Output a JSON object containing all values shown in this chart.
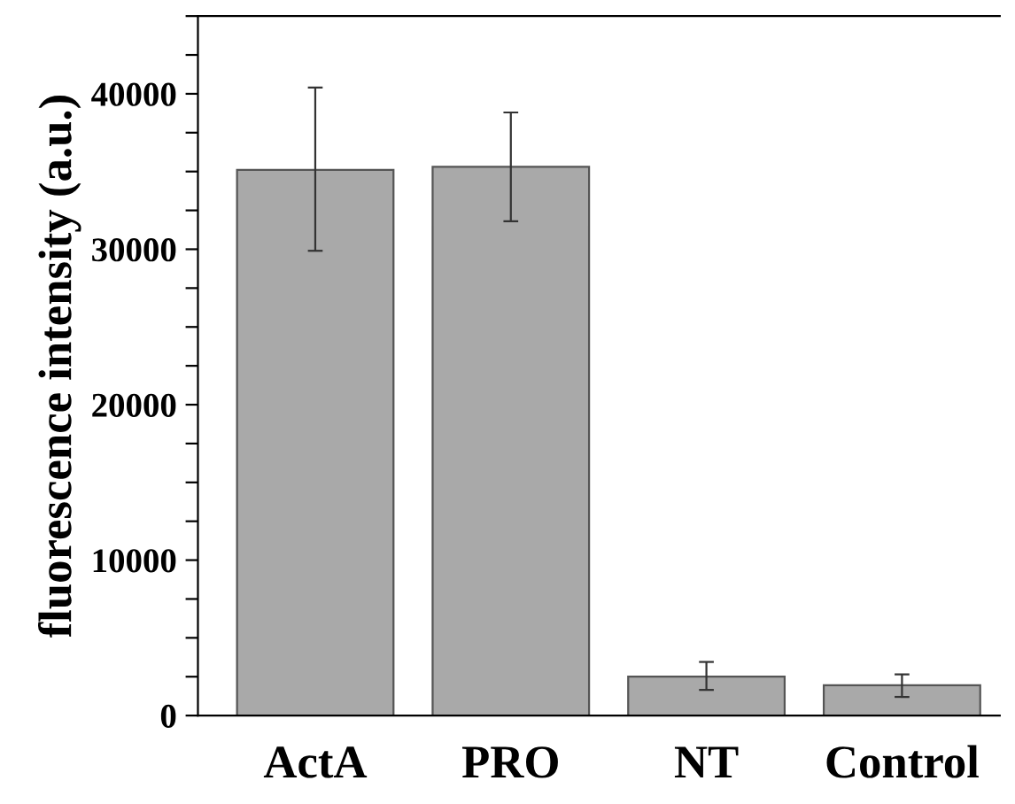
{
  "chart_data": {
    "type": "bar",
    "ylabel": "fluorescence intensity (a.u.)",
    "categories": [
      "ActA",
      "PRO",
      "NT",
      "Control"
    ],
    "values": [
      35100,
      35300,
      2500,
      1950
    ],
    "errors": [
      [
        29900,
        40400
      ],
      [
        31800,
        38800
      ],
      [
        1650,
        3450
      ],
      [
        1200,
        2650
      ]
    ],
    "color": "#a9a9a9",
    "ylim": [
      0,
      45000
    ],
    "yticks": [
      0,
      {
        "value": 2500,
        "label": null
      },
      {
        "value": 5000,
        "label": null
      },
      {
        "value": 7500,
        "label": null
      },
      10000,
      {
        "value": 12500,
        "label": null
      },
      {
        "value": 15000,
        "label": null
      },
      {
        "value": 17500,
        "label": null
      },
      20000,
      {
        "value": 22500,
        "label": null
      },
      {
        "value": 25000,
        "label": null
      },
      {
        "value": 27500,
        "label": null
      },
      30000,
      {
        "value": 32500,
        "label": null
      },
      {
        "value": 35000,
        "label": null
      },
      {
        "value": 37500,
        "label": null
      },
      40000,
      {
        "value": 42500,
        "label": null
      },
      {
        "value": 45000,
        "label": null
      }
    ],
    "grid": false,
    "legend": false
  }
}
